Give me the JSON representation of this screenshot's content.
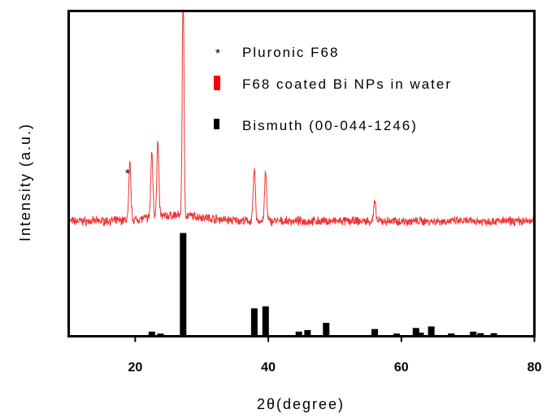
{
  "chart_data": {
    "type": "line",
    "xlabel": "2θ(degree)",
    "ylabel": "Intensity (a.u.)",
    "xlim": [
      10,
      80
    ],
    "xticks": [
      20,
      40,
      60,
      80
    ],
    "y_axis_ticks_visible": false,
    "grid": false,
    "legend_position": "top-center",
    "legend": [
      {
        "marker": "*",
        "label": "Pluronic F68",
        "color": "#000000"
      },
      {
        "marker": "bar",
        "label": "F68 coated Bi NPs in water",
        "color": "#ff0000"
      },
      {
        "marker": "bar",
        "label": "Bismuth (00-044-1246)",
        "color": "#000000"
      }
    ],
    "annotations": [
      {
        "text": "*",
        "x": 19
      }
    ],
    "series": [
      {
        "label": "F68 coated Bi NPs in water",
        "color": "#ee3333",
        "baseline": 0.1,
        "background_hump": {
          "center": 26.5,
          "amplitude": 0.05,
          "width": 6
        },
        "peaks": [
          {
            "x": 19.2,
            "y": 0.58
          },
          {
            "x": 22.5,
            "y": 0.66
          },
          {
            "x": 23.4,
            "y": 0.74
          },
          {
            "x": 27.2,
            "y": 2.2
          },
          {
            "x": 37.9,
            "y": 0.55
          },
          {
            "x": 39.6,
            "y": 0.52
          },
          {
            "x": 56.0,
            "y": 0.26
          }
        ]
      }
    ],
    "reference_pattern": {
      "label": "Bismuth (00-044-1246)",
      "color": "#000000",
      "positions": [
        22.5,
        23.8,
        27.2,
        37.9,
        39.6,
        44.6,
        45.9,
        48.7,
        56.0,
        59.3,
        62.2,
        62.9,
        64.5,
        67.5,
        70.8,
        71.9,
        73.9
      ],
      "intensities": [
        4.5,
        2.6,
        100,
        27,
        29,
        4.5,
        6,
        13,
        7,
        2.6,
        8,
        3.5,
        9.5,
        2.7,
        4.5,
        3,
        3
      ]
    }
  }
}
